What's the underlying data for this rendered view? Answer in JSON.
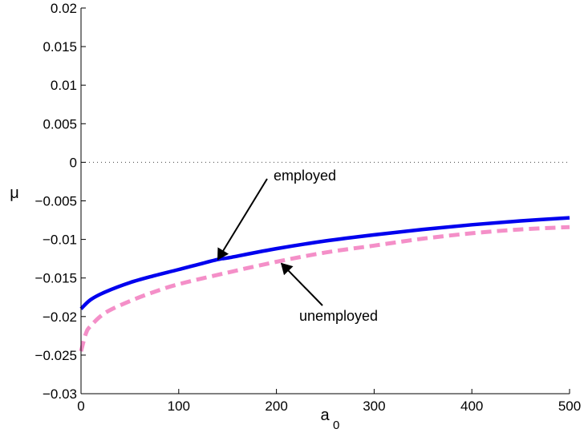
{
  "chart_data": {
    "type": "line",
    "xlabel": "a",
    "xlabel_subscript": "0",
    "ylabel": "μ",
    "xlim": [
      0,
      500
    ],
    "ylim": [
      -0.03,
      0.02
    ],
    "xticks": [
      0,
      100,
      200,
      300,
      400,
      500
    ],
    "xtick_labels": [
      "0",
      "100",
      "200",
      "300",
      "400",
      "500"
    ],
    "yticks": [
      -0.03,
      -0.025,
      -0.02,
      -0.015,
      -0.01,
      -0.005,
      0,
      0.005,
      0.01,
      0.015,
      0.02
    ],
    "ytick_labels": [
      "−0.03",
      "−0.025",
      "−0.02",
      "−0.015",
      "−0.01",
      "−0.005",
      "0",
      "0.005",
      "0.01",
      "0.015",
      "0.02"
    ],
    "reference_line": {
      "y": 0,
      "style": "dotted",
      "color": "#444444"
    },
    "series": [
      {
        "name": "employed",
        "color": "#0000ee",
        "style": "solid",
        "x": [
          0,
          10,
          25,
          50,
          75,
          100,
          140,
          150,
          200,
          250,
          300,
          350,
          400,
          450,
          500
        ],
        "y": [
          -0.019,
          -0.0178,
          -0.0168,
          -0.0156,
          -0.0147,
          -0.0139,
          -0.0126,
          -0.0124,
          -0.0112,
          -0.0102,
          -0.0094,
          -0.0087,
          -0.0081,
          -0.0076,
          -0.0072
        ]
      },
      {
        "name": "unemployed",
        "color": "#f48fc8",
        "style": "dashed",
        "x": [
          0,
          5,
          10,
          25,
          50,
          75,
          100,
          150,
          200,
          250,
          300,
          350,
          400,
          450,
          500
        ],
        "y": [
          -0.0245,
          -0.0222,
          -0.0212,
          -0.0195,
          -0.018,
          -0.0168,
          -0.0158,
          -0.0143,
          -0.0129,
          -0.0117,
          -0.0108,
          -0.0099,
          -0.0092,
          -0.0087,
          -0.0084
        ]
      }
    ],
    "annotations": [
      {
        "text": "employed",
        "series": "employed",
        "arrow_to_x": 140,
        "arrow_to_y": -0.0126
      },
      {
        "text": "unemployed",
        "series": "unemployed",
        "arrow_to_x": 205,
        "arrow_to_y": -0.0131
      }
    ]
  }
}
